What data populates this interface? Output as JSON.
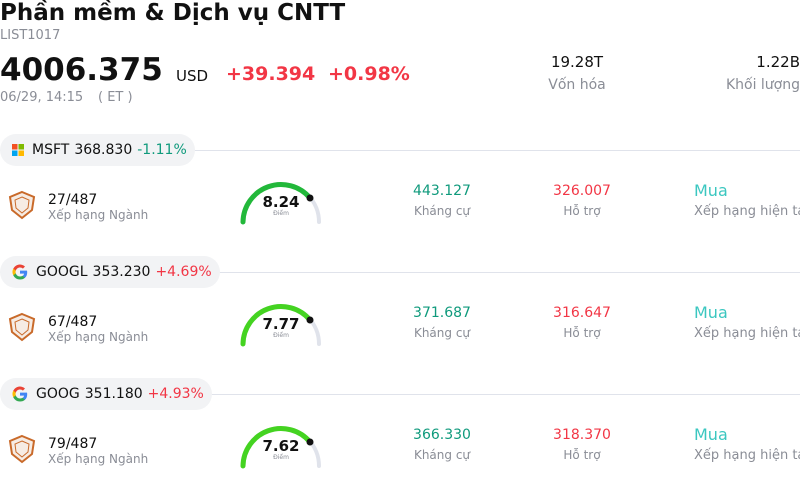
{
  "header": {
    "title": "Phần mềm & Dịch vụ CNTT",
    "code": "LIST1017",
    "price": "4006.375",
    "currency": "USD",
    "change": "+39.394",
    "change_pct": "+0.98%",
    "time": "06/29, 14:15",
    "timezone": "( ET )",
    "market_cap": "19.28T",
    "market_cap_label": "Vốn hóa",
    "volume": "1.22B",
    "volume_label": "Khối lượng"
  },
  "stocks": [
    {
      "ticker": "MSFT",
      "price": "368.830",
      "change": "-1.11%",
      "rank": "27/487",
      "rank_label": "Xếp hạng Ngành",
      "score": "8.24",
      "score_label": "Điểm",
      "gauge_color": "#22b83a",
      "resistance": "443.127",
      "resistance_label": "Kháng cự",
      "support": "326.007",
      "support_label": "Hỗ trợ",
      "rating": "Mua",
      "rating_label": "Xếp hạng hiện tại"
    },
    {
      "ticker": "GOOGL",
      "price": "353.230",
      "change": "+4.69%",
      "rank": "67/487",
      "rank_label": "Xếp hạng Ngành",
      "score": "7.77",
      "score_label": "Điểm",
      "gauge_color": "#44d321",
      "resistance": "371.687",
      "resistance_label": "Kháng cự",
      "support": "316.647",
      "support_label": "Hỗ trợ",
      "rating": "Mua",
      "rating_label": "Xếp hạng hiện tại"
    },
    {
      "ticker": "GOOG",
      "price": "351.180",
      "change": "+4.93%",
      "rank": "79/487",
      "rank_label": "Xếp hạng Ngành",
      "score": "7.62",
      "score_label": "Điểm",
      "gauge_color": "#44d321",
      "resistance": "366.330",
      "resistance_label": "Kháng cự",
      "support": "318.370",
      "support_label": "Hỗ trợ",
      "rating": "Mua",
      "rating_label": "Xếp hạng hiện tại"
    }
  ]
}
